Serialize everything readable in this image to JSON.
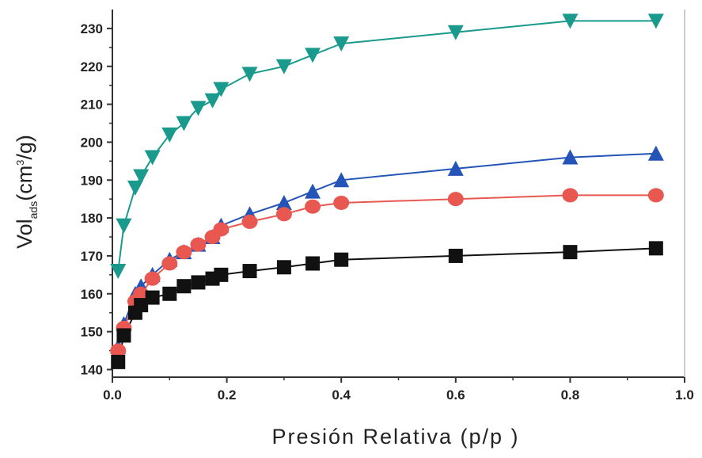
{
  "chart_data": {
    "type": "line",
    "title": "",
    "xlabel": "Presión Relativa (p/p  )",
    "ylabel_main": "Vol",
    "ylabel_sub": "ads",
    "ylabel_rest": "(cm",
    "ylabel_sup": "3",
    "ylabel_end": "/g)",
    "xlim": [
      0.0,
      1.0
    ],
    "ylim": [
      138,
      235
    ],
    "xticks": [
      {
        "value": 0.0,
        "label": "0.0"
      },
      {
        "value": 0.2,
        "label": "0.2"
      },
      {
        "value": 0.4,
        "label": "0.4"
      },
      {
        "value": 0.6,
        "label": "0.6"
      },
      {
        "value": 0.8,
        "label": "0.8"
      },
      {
        "value": 1.0,
        "label": "1.0"
      }
    ],
    "yticks": [
      {
        "value": 140,
        "label": "140"
      },
      {
        "value": 150,
        "label": "150"
      },
      {
        "value": 160,
        "label": "160"
      },
      {
        "value": 170,
        "label": "170"
      },
      {
        "value": 180,
        "label": "180"
      },
      {
        "value": 190,
        "label": "190"
      },
      {
        "value": 200,
        "label": "200"
      },
      {
        "value": 210,
        "label": "210"
      },
      {
        "value": 220,
        "label": "220"
      },
      {
        "value": 230,
        "label": "230"
      }
    ],
    "grid": false,
    "legend": "none",
    "series": [
      {
        "marker": "triangle-down",
        "color": "#1a9a8c",
        "points": [
          [
            0.01,
            166
          ],
          [
            0.02,
            178
          ],
          [
            0.04,
            188
          ],
          [
            0.05,
            191
          ],
          [
            0.07,
            196
          ],
          [
            0.1,
            202
          ],
          [
            0.125,
            205
          ],
          [
            0.15,
            209
          ],
          [
            0.175,
            211
          ],
          [
            0.19,
            214
          ],
          [
            0.24,
            218
          ],
          [
            0.3,
            220
          ],
          [
            0.35,
            223
          ],
          [
            0.4,
            226
          ],
          [
            0.6,
            229
          ],
          [
            0.8,
            232
          ],
          [
            0.95,
            232
          ]
        ]
      },
      {
        "marker": "triangle-up",
        "color": "#2454b8",
        "points": [
          [
            0.01,
            146
          ],
          [
            0.02,
            152
          ],
          [
            0.04,
            160
          ],
          [
            0.05,
            162
          ],
          [
            0.07,
            165
          ],
          [
            0.1,
            169
          ],
          [
            0.125,
            171
          ],
          [
            0.15,
            173
          ],
          [
            0.175,
            175
          ],
          [
            0.19,
            178
          ],
          [
            0.24,
            181
          ],
          [
            0.3,
            184
          ],
          [
            0.35,
            187
          ],
          [
            0.4,
            190
          ],
          [
            0.6,
            193
          ],
          [
            0.8,
            196
          ],
          [
            0.95,
            197
          ]
        ]
      },
      {
        "marker": "circle",
        "color": "#e85850",
        "points": [
          [
            0.01,
            145
          ],
          [
            0.02,
            151
          ],
          [
            0.04,
            158
          ],
          [
            0.05,
            160
          ],
          [
            0.07,
            164
          ],
          [
            0.1,
            168
          ],
          [
            0.125,
            171
          ],
          [
            0.15,
            173
          ],
          [
            0.175,
            175
          ],
          [
            0.19,
            177
          ],
          [
            0.24,
            179
          ],
          [
            0.3,
            181
          ],
          [
            0.35,
            183
          ],
          [
            0.4,
            184
          ],
          [
            0.6,
            185
          ],
          [
            0.8,
            186
          ],
          [
            0.95,
            186
          ]
        ]
      },
      {
        "marker": "square",
        "color": "#111111",
        "points": [
          [
            0.01,
            142
          ],
          [
            0.02,
            149
          ],
          [
            0.04,
            155
          ],
          [
            0.05,
            157
          ],
          [
            0.07,
            159
          ],
          [
            0.1,
            160
          ],
          [
            0.125,
            162
          ],
          [
            0.15,
            163
          ],
          [
            0.175,
            164
          ],
          [
            0.19,
            165
          ],
          [
            0.24,
            166
          ],
          [
            0.3,
            167
          ],
          [
            0.35,
            168
          ],
          [
            0.4,
            169
          ],
          [
            0.6,
            170
          ],
          [
            0.8,
            171
          ],
          [
            0.95,
            172
          ]
        ]
      }
    ]
  }
}
